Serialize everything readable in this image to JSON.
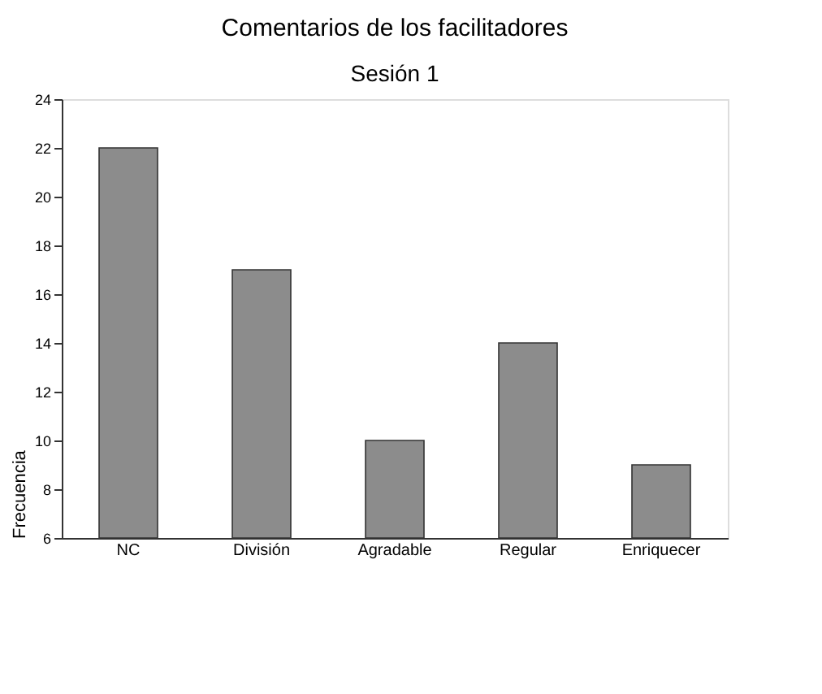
{
  "chart_data": {
    "type": "bar",
    "title": "Comentarios de los facilitadores",
    "subtitle": "Sesión 1",
    "ylabel": "Frecuencia",
    "categories": [
      "NC",
      "División",
      "Agradable",
      "Regular",
      "Enriquecer"
    ],
    "values": [
      22,
      17,
      10,
      14,
      9
    ],
    "color": "#8c8c8c",
    "ylim": [
      6,
      24
    ],
    "yticks": [
      6,
      8,
      10,
      12,
      14,
      16,
      18,
      20,
      22,
      24
    ],
    "grid": false
  }
}
